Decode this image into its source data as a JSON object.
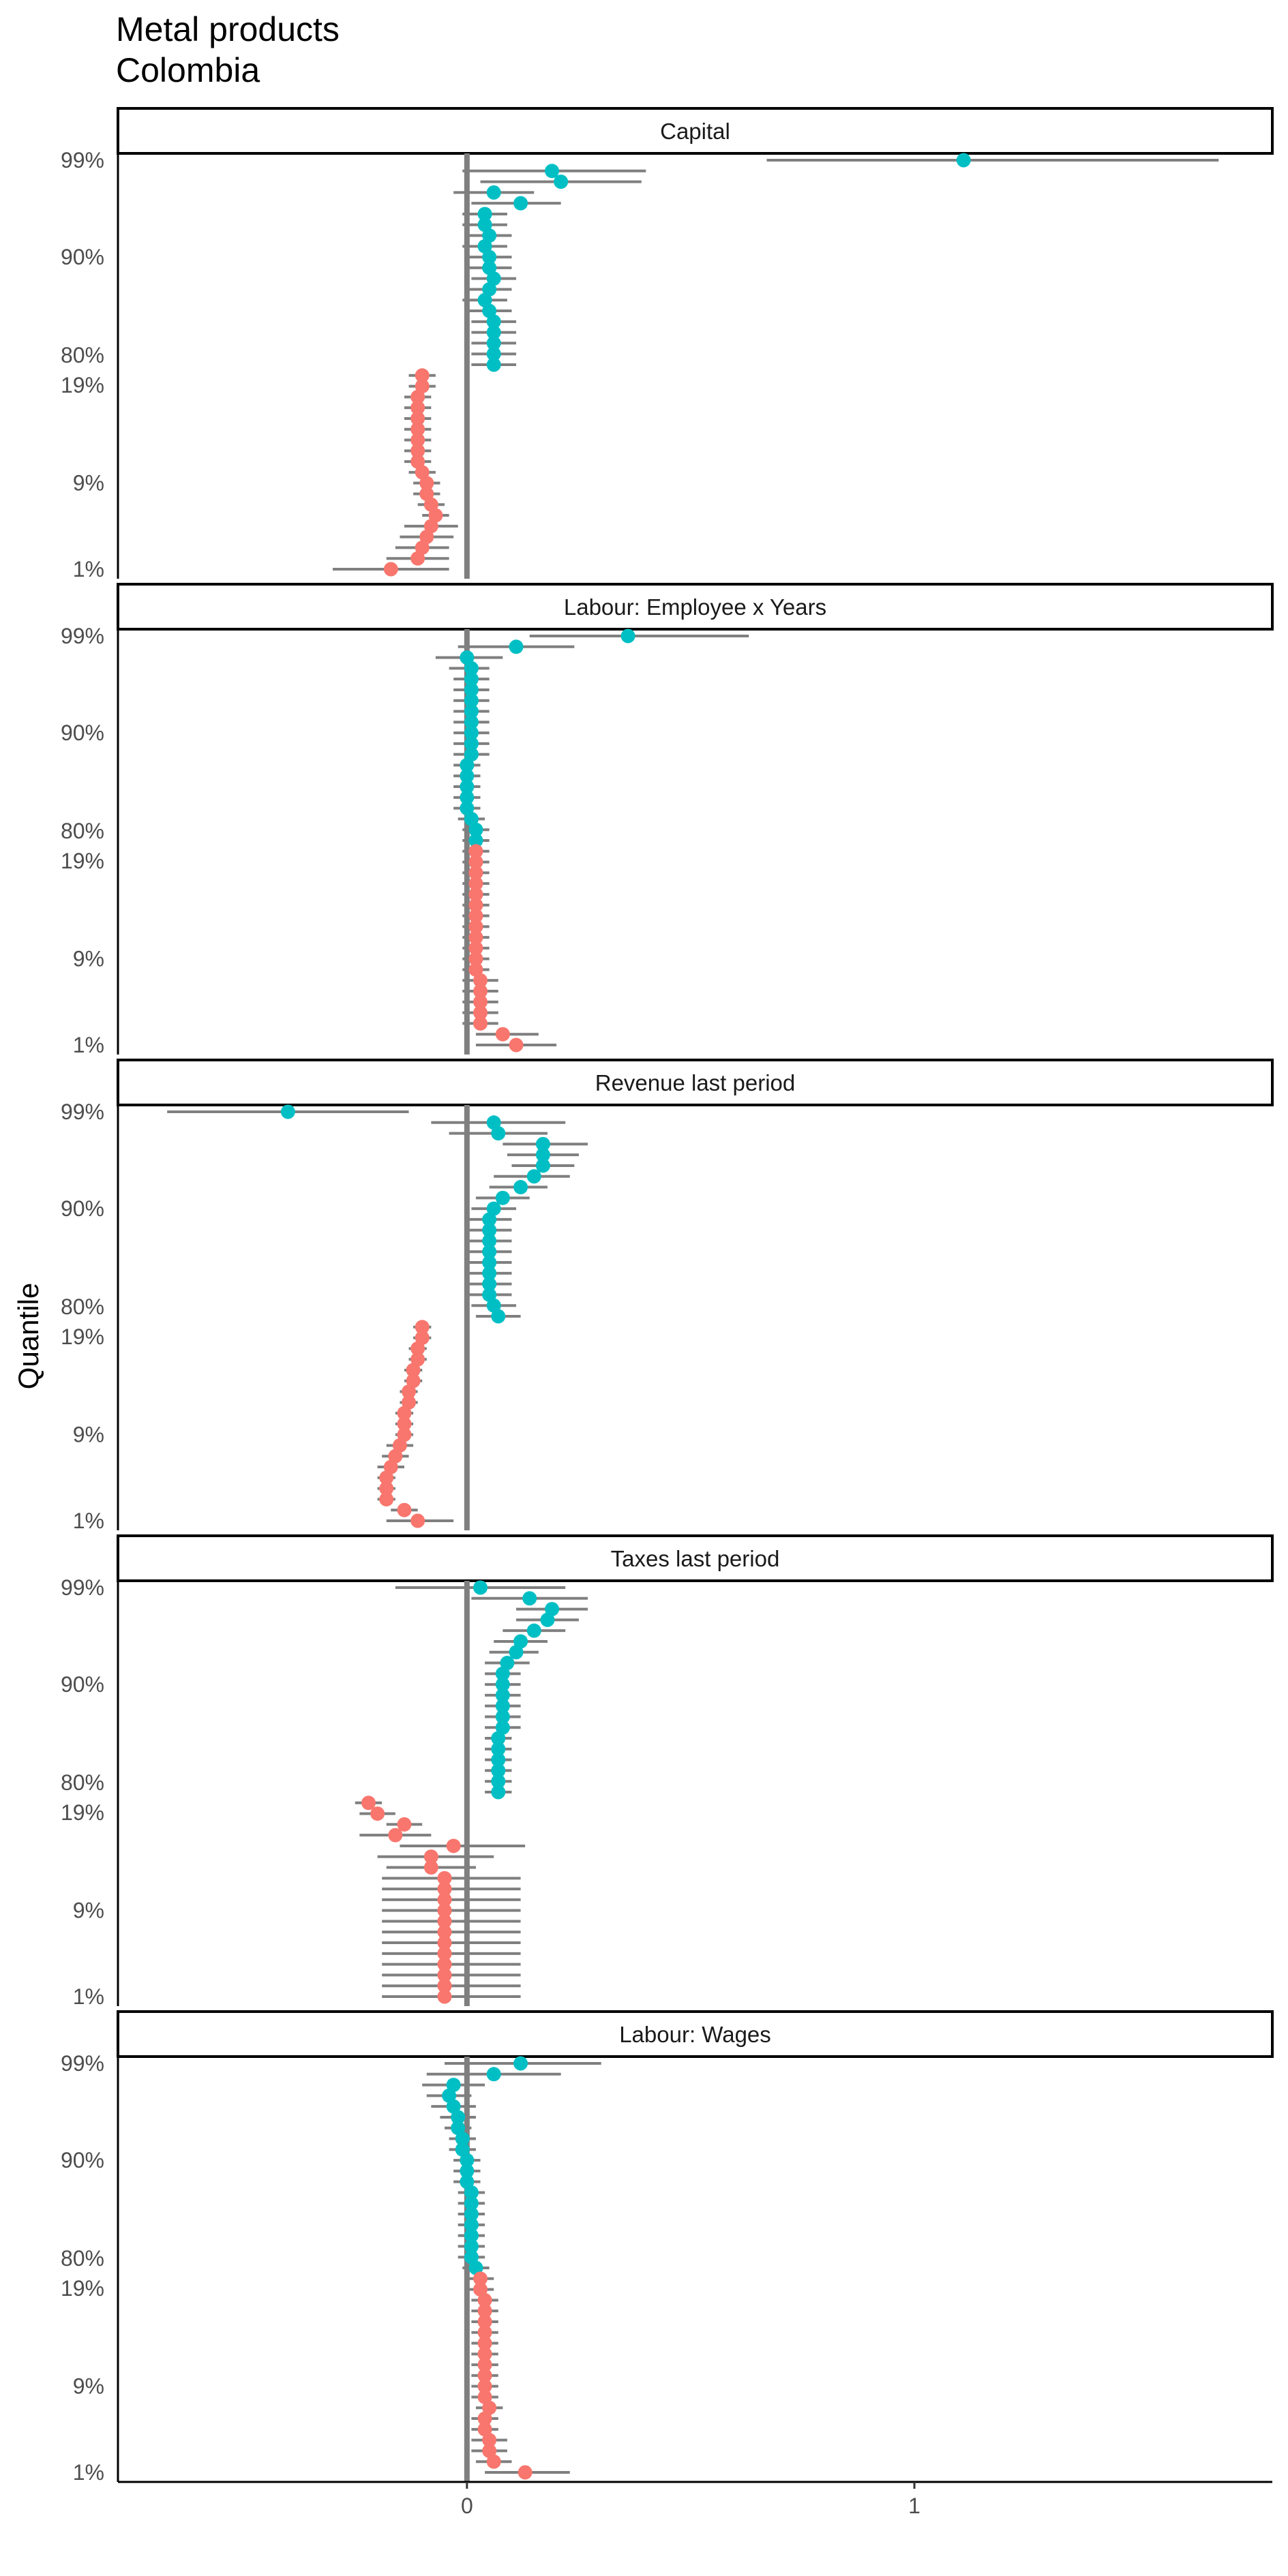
{
  "title": "Metal products",
  "subtitle": "Colombia",
  "colors": {
    "upper": "#00BFC4",
    "lower": "#F8766D",
    "ci": "#7F7F7F",
    "zero": "#7F7F7F"
  },
  "chart_data": {
    "type": "scatter",
    "title": "Metal products",
    "subtitle": "Colombia",
    "xlabel": "",
    "ylabel": "Quantile",
    "x_ticks": [
      0,
      1
    ],
    "xlim": [
      -0.78,
      1.8
    ],
    "grid": false,
    "legend": "none",
    "facet_order": [
      "Capital",
      "Labour: Employee x Years",
      "Revenue last period",
      "Taxes last period",
      "Labour: Wages"
    ],
    "panels": [
      {
        "label": "Capital",
        "y_ticks": [
          "99%",
          "90%",
          "80%",
          "19%",
          "9%",
          "1%"
        ],
        "upper": {
          "quantiles": [
            "99%",
            "98%",
            "97%",
            "96%",
            "95%",
            "94%",
            "93%",
            "92%",
            "91%",
            "90%",
            "89%",
            "88%",
            "87%",
            "86%",
            "85%",
            "84%",
            "83%",
            "82%",
            "81%",
            "80%"
          ],
          "estimate": [
            1.11,
            0.19,
            0.21,
            0.06,
            0.12,
            0.04,
            0.04,
            0.05,
            0.04,
            0.05,
            0.05,
            0.06,
            0.05,
            0.04,
            0.05,
            0.06,
            0.06,
            0.06,
            0.06,
            0.06
          ],
          "lower": [
            0.67,
            -0.01,
            0.03,
            -0.03,
            0.01,
            -0.01,
            -0.01,
            0.0,
            -0.01,
            0.0,
            0.0,
            0.01,
            0.0,
            -0.01,
            0.0,
            0.01,
            0.01,
            0.01,
            0.01,
            0.01
          ],
          "upper": [
            1.68,
            0.4,
            0.39,
            0.15,
            0.21,
            0.09,
            0.09,
            0.1,
            0.09,
            0.1,
            0.1,
            0.11,
            0.1,
            0.09,
            0.1,
            0.11,
            0.11,
            0.11,
            0.11,
            0.11
          ]
        },
        "lower_tail": {
          "quantiles": [
            "19%",
            "18%",
            "17%",
            "16%",
            "15%",
            "14%",
            "13%",
            "12%",
            "11%",
            "10%",
            "9%",
            "8%",
            "7%",
            "6%",
            "5%",
            "4%",
            "3%",
            "2%",
            "1%"
          ],
          "estimate": [
            -0.1,
            -0.1,
            -0.11,
            -0.11,
            -0.11,
            -0.11,
            -0.11,
            -0.11,
            -0.11,
            -0.1,
            -0.09,
            -0.09,
            -0.08,
            -0.07,
            -0.08,
            -0.09,
            -0.1,
            -0.11,
            -0.17
          ],
          "lower": [
            -0.13,
            -0.13,
            -0.14,
            -0.14,
            -0.14,
            -0.14,
            -0.14,
            -0.14,
            -0.14,
            -0.13,
            -0.12,
            -0.12,
            -0.11,
            -0.1,
            -0.14,
            -0.15,
            -0.16,
            -0.18,
            -0.3
          ],
          "upper": [
            -0.07,
            -0.07,
            -0.08,
            -0.08,
            -0.08,
            -0.08,
            -0.08,
            -0.08,
            -0.08,
            -0.07,
            -0.06,
            -0.06,
            -0.05,
            -0.04,
            -0.02,
            -0.03,
            -0.04,
            -0.04,
            -0.04
          ]
        }
      },
      {
        "label": "Labour: Employee x Years",
        "y_ticks": [
          "99%",
          "90%",
          "80%",
          "19%",
          "9%",
          "1%"
        ],
        "upper": {
          "quantiles": [
            "99%",
            "98%",
            "97%",
            "96%",
            "95%",
            "94%",
            "93%",
            "92%",
            "91%",
            "90%",
            "89%",
            "88%",
            "87%",
            "86%",
            "85%",
            "84%",
            "83%",
            "82%",
            "81%",
            "80%"
          ],
          "estimate": [
            0.36,
            0.11,
            0.0,
            0.01,
            0.01,
            0.01,
            0.01,
            0.01,
            0.01,
            0.01,
            0.01,
            0.01,
            0.0,
            0.0,
            0.0,
            0.0,
            0.0,
            0.01,
            0.02,
            0.02
          ],
          "lower": [
            0.14,
            -0.02,
            -0.07,
            -0.04,
            -0.03,
            -0.03,
            -0.03,
            -0.03,
            -0.03,
            -0.03,
            -0.03,
            -0.03,
            -0.03,
            -0.03,
            -0.03,
            -0.03,
            -0.03,
            -0.02,
            -0.01,
            -0.01
          ],
          "upper": [
            0.63,
            0.24,
            0.08,
            0.05,
            0.05,
            0.05,
            0.05,
            0.05,
            0.05,
            0.05,
            0.05,
            0.05,
            0.03,
            0.03,
            0.03,
            0.03,
            0.03,
            0.04,
            0.05,
            0.05
          ]
        },
        "lower_tail": {
          "quantiles": [
            "19%",
            "18%",
            "17%",
            "16%",
            "15%",
            "14%",
            "13%",
            "12%",
            "11%",
            "10%",
            "9%",
            "8%",
            "7%",
            "6%",
            "5%",
            "4%",
            "3%",
            "2%",
            "1%"
          ],
          "estimate": [
            0.02,
            0.02,
            0.02,
            0.02,
            0.02,
            0.02,
            0.02,
            0.02,
            0.02,
            0.02,
            0.02,
            0.02,
            0.03,
            0.03,
            0.03,
            0.03,
            0.03,
            0.08,
            0.11
          ],
          "lower": [
            -0.01,
            -0.01,
            -0.01,
            -0.01,
            -0.01,
            -0.01,
            -0.01,
            -0.01,
            -0.01,
            -0.01,
            -0.01,
            -0.01,
            -0.01,
            -0.01,
            -0.01,
            -0.01,
            -0.01,
            0.02,
            0.02
          ],
          "upper": [
            0.05,
            0.05,
            0.05,
            0.05,
            0.05,
            0.05,
            0.05,
            0.05,
            0.05,
            0.05,
            0.05,
            0.05,
            0.07,
            0.07,
            0.07,
            0.07,
            0.07,
            0.16,
            0.2
          ]
        }
      },
      {
        "label": "Revenue last period",
        "y_ticks": [
          "99%",
          "90%",
          "80%",
          "19%",
          "9%",
          "1%"
        ],
        "upper": {
          "quantiles": [
            "99%",
            "98%",
            "97%",
            "96%",
            "95%",
            "94%",
            "93%",
            "92%",
            "91%",
            "90%",
            "89%",
            "88%",
            "87%",
            "86%",
            "85%",
            "84%",
            "83%",
            "82%",
            "81%",
            "80%"
          ],
          "estimate": [
            -0.4,
            0.06,
            0.07,
            0.17,
            0.17,
            0.17,
            0.15,
            0.12,
            0.08,
            0.06,
            0.05,
            0.05,
            0.05,
            0.05,
            0.05,
            0.05,
            0.05,
            0.05,
            0.06,
            0.07
          ],
          "lower": [
            -0.67,
            -0.08,
            -0.04,
            0.08,
            0.09,
            0.1,
            0.06,
            0.05,
            0.02,
            0.01,
            0.0,
            0.0,
            0.0,
            0.0,
            0.0,
            0.0,
            0.0,
            0.0,
            0.01,
            0.02
          ],
          "upper": [
            -0.13,
            0.22,
            0.18,
            0.27,
            0.25,
            0.24,
            0.23,
            0.18,
            0.14,
            0.11,
            0.1,
            0.1,
            0.1,
            0.1,
            0.1,
            0.1,
            0.1,
            0.1,
            0.11,
            0.12
          ]
        },
        "lower_tail": {
          "quantiles": [
            "19%",
            "18%",
            "17%",
            "16%",
            "15%",
            "14%",
            "13%",
            "12%",
            "11%",
            "10%",
            "9%",
            "8%",
            "7%",
            "6%",
            "5%",
            "4%",
            "3%",
            "2%",
            "1%"
          ],
          "estimate": [
            -0.1,
            -0.1,
            -0.11,
            -0.11,
            -0.12,
            -0.12,
            -0.13,
            -0.13,
            -0.14,
            -0.14,
            -0.14,
            -0.15,
            -0.16,
            -0.17,
            -0.18,
            -0.18,
            -0.18,
            -0.14,
            -0.11
          ],
          "lower": [
            -0.12,
            -0.12,
            -0.13,
            -0.13,
            -0.14,
            -0.14,
            -0.15,
            -0.15,
            -0.16,
            -0.16,
            -0.16,
            -0.18,
            -0.19,
            -0.2,
            -0.2,
            -0.2,
            -0.2,
            -0.17,
            -0.18
          ],
          "upper": [
            -0.08,
            -0.08,
            -0.09,
            -0.09,
            -0.1,
            -0.1,
            -0.11,
            -0.11,
            -0.12,
            -0.12,
            -0.12,
            -0.12,
            -0.13,
            -0.14,
            -0.16,
            -0.16,
            -0.16,
            -0.11,
            -0.03
          ]
        }
      },
      {
        "label": "Taxes last period",
        "y_ticks": [
          "99%",
          "90%",
          "80%",
          "19%",
          "9%",
          "1%"
        ],
        "upper": {
          "quantiles": [
            "99%",
            "98%",
            "97%",
            "96%",
            "95%",
            "94%",
            "93%",
            "92%",
            "91%",
            "90%",
            "89%",
            "88%",
            "87%",
            "86%",
            "85%",
            "84%",
            "83%",
            "82%",
            "81%",
            "80%"
          ],
          "estimate": [
            0.03,
            0.14,
            0.19,
            0.18,
            0.15,
            0.12,
            0.11,
            0.09,
            0.08,
            0.08,
            0.08,
            0.08,
            0.08,
            0.08,
            0.07,
            0.07,
            0.07,
            0.07,
            0.07,
            0.07
          ],
          "lower": [
            -0.16,
            0.01,
            0.11,
            0.11,
            0.08,
            0.06,
            0.05,
            0.04,
            0.04,
            0.04,
            0.04,
            0.04,
            0.04,
            0.04,
            0.04,
            0.04,
            0.04,
            0.04,
            0.04,
            0.04
          ],
          "upper": [
            0.22,
            0.27,
            0.27,
            0.25,
            0.22,
            0.18,
            0.16,
            0.14,
            0.12,
            0.12,
            0.12,
            0.12,
            0.12,
            0.12,
            0.1,
            0.1,
            0.1,
            0.1,
            0.1,
            0.1
          ]
        },
        "lower_tail": {
          "quantiles": [
            "19%",
            "18%",
            "17%",
            "16%",
            "15%",
            "14%",
            "13%",
            "12%",
            "11%",
            "10%",
            "9%",
            "8%",
            "7%",
            "6%",
            "5%",
            "4%",
            "3%",
            "2%",
            "1%"
          ],
          "estimate": [
            -0.22,
            -0.2,
            -0.14,
            -0.16,
            -0.03,
            -0.08,
            -0.08,
            -0.05,
            -0.05,
            -0.05,
            -0.05,
            -0.05,
            -0.05,
            -0.05,
            -0.05,
            -0.05,
            -0.05,
            -0.05,
            -0.05
          ],
          "lower": [
            -0.25,
            -0.24,
            -0.18,
            -0.24,
            -0.15,
            -0.2,
            -0.18,
            -0.19,
            -0.19,
            -0.19,
            -0.19,
            -0.19,
            -0.19,
            -0.19,
            -0.19,
            -0.19,
            -0.19,
            -0.19,
            -0.19
          ],
          "upper": [
            -0.19,
            -0.16,
            -0.1,
            -0.08,
            0.13,
            0.06,
            0.02,
            0.12,
            0.12,
            0.12,
            0.12,
            0.12,
            0.12,
            0.12,
            0.12,
            0.12,
            0.12,
            0.12,
            0.12
          ]
        }
      },
      {
        "label": "Labour: Wages",
        "y_ticks": [
          "99%",
          "90%",
          "80%",
          "19%",
          "9%",
          "1%"
        ],
        "upper": {
          "quantiles": [
            "99%",
            "98%",
            "97%",
            "96%",
            "95%",
            "94%",
            "93%",
            "92%",
            "91%",
            "90%",
            "89%",
            "88%",
            "87%",
            "86%",
            "85%",
            "84%",
            "83%",
            "82%",
            "81%",
            "80%"
          ],
          "estimate": [
            0.12,
            0.06,
            -0.03,
            -0.04,
            -0.03,
            -0.02,
            -0.02,
            -0.01,
            -0.01,
            0.0,
            0.0,
            0.0,
            0.01,
            0.01,
            0.01,
            0.01,
            0.01,
            0.01,
            0.01,
            0.02
          ],
          "lower": [
            -0.05,
            -0.09,
            -0.1,
            -0.09,
            -0.08,
            -0.06,
            -0.05,
            -0.04,
            -0.04,
            -0.03,
            -0.03,
            -0.03,
            -0.02,
            -0.02,
            -0.02,
            -0.02,
            -0.02,
            -0.02,
            -0.02,
            -0.01
          ],
          "upper": [
            0.3,
            0.21,
            0.04,
            0.01,
            0.02,
            0.02,
            0.01,
            0.02,
            0.02,
            0.03,
            0.03,
            0.03,
            0.04,
            0.04,
            0.04,
            0.04,
            0.04,
            0.04,
            0.04,
            0.05
          ]
        },
        "lower_tail": {
          "quantiles": [
            "19%",
            "18%",
            "17%",
            "16%",
            "15%",
            "14%",
            "13%",
            "12%",
            "11%",
            "10%",
            "9%",
            "8%",
            "7%",
            "6%",
            "5%",
            "4%",
            "3%",
            "2%",
            "1%"
          ],
          "estimate": [
            0.03,
            0.03,
            0.04,
            0.04,
            0.04,
            0.04,
            0.04,
            0.04,
            0.04,
            0.04,
            0.04,
            0.04,
            0.05,
            0.04,
            0.04,
            0.05,
            0.05,
            0.06,
            0.13
          ],
          "lower": [
            0.0,
            0.0,
            0.01,
            0.01,
            0.01,
            0.01,
            0.01,
            0.01,
            0.01,
            0.01,
            0.01,
            0.01,
            0.02,
            0.01,
            0.01,
            0.01,
            0.01,
            0.02,
            0.04
          ],
          "upper": [
            0.06,
            0.06,
            0.07,
            0.07,
            0.07,
            0.07,
            0.07,
            0.07,
            0.07,
            0.07,
            0.07,
            0.07,
            0.08,
            0.07,
            0.07,
            0.09,
            0.09,
            0.1,
            0.23
          ]
        }
      }
    ]
  }
}
